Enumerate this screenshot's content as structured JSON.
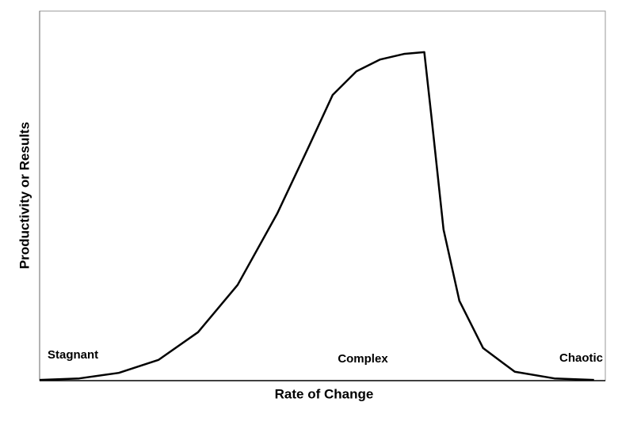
{
  "chart_data": {
    "type": "line",
    "xlabel": "Rate of Change",
    "ylabel": "Productivity or Results",
    "annotations": [
      "Stagnant",
      "Complex",
      "Chaotic"
    ],
    "xlim": [
      0,
      100
    ],
    "ylim": [
      0,
      100
    ],
    "x": [
      0,
      7,
      14,
      21,
      28,
      35,
      42,
      47.6,
      51.8,
      56,
      60.2,
      64.4,
      68,
      69.3,
      71.4,
      74.2,
      78.4,
      84,
      91,
      98
    ],
    "series": [
      {
        "color": "#000000",
        "values": [
          0.2,
          0.6,
          2.1,
          5.6,
          13.1,
          25.9,
          45.2,
          63.4,
          77.3,
          83.7,
          86.9,
          88.4,
          88.9,
          70.9,
          40.9,
          21.6,
          8.8,
          2.4,
          0.6,
          0.2
        ]
      }
    ]
  }
}
